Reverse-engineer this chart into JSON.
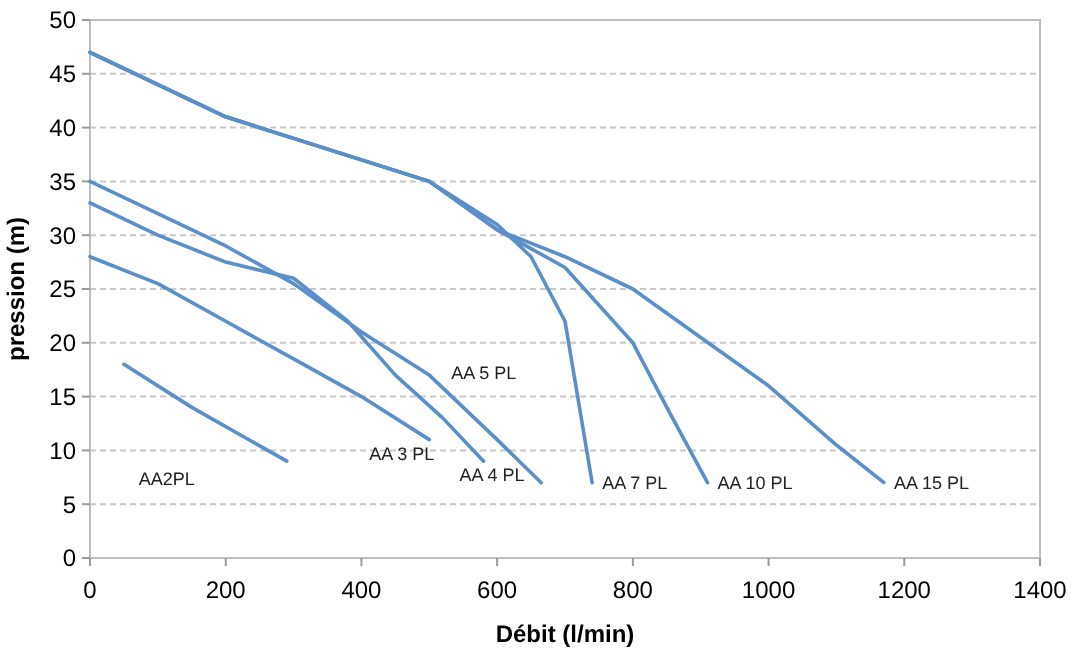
{
  "chart_data": {
    "type": "line",
    "xlabel": "Débit (l/min)",
    "ylabel": "pression (m)",
    "xlim": [
      0,
      1400
    ],
    "xticks": [
      0,
      200,
      400,
      600,
      800,
      1000,
      1200,
      1400
    ],
    "ylim": [
      0,
      50
    ],
    "yticks": [
      0,
      5,
      10,
      15,
      20,
      25,
      30,
      35,
      40,
      45,
      50
    ],
    "grid": "y",
    "marker": "none",
    "line_style": "solid",
    "series": [
      {
        "name": "AA2PL",
        "color": "#5b8fc9",
        "x": [
          50,
          150,
          290
        ],
        "values": [
          18,
          14,
          9
        ]
      },
      {
        "name": "AA 3 PL",
        "color": "#5b8fc9",
        "x": [
          0,
          100,
          200,
          300,
          400,
          500
        ],
        "values": [
          28,
          25.5,
          22,
          18.5,
          15,
          11
        ]
      },
      {
        "name": "AA 4 PL",
        "color": "#5b8fc9",
        "x": [
          0,
          100,
          200,
          300,
          380,
          450,
          520,
          580
        ],
        "values": [
          33,
          30,
          27.5,
          26,
          22,
          17,
          13,
          9
        ]
      },
      {
        "name": "AA 5 PL",
        "color": "#5b8fc9",
        "x": [
          0,
          100,
          200,
          300,
          400,
          500,
          600,
          665
        ],
        "values": [
          35,
          32,
          29,
          25.5,
          21,
          17,
          11,
          7
        ]
      },
      {
        "name": "AA 7 PL",
        "color": "#5b8fc9",
        "x": [
          0,
          100,
          200,
          300,
          400,
          500,
          550,
          600,
          650,
          700,
          740
        ],
        "values": [
          47,
          44,
          41,
          39,
          37,
          35,
          33,
          31,
          28,
          22,
          7
        ]
      },
      {
        "name": "AA 10 PL",
        "color": "#5b8fc9",
        "x": [
          0,
          100,
          200,
          300,
          400,
          500,
          600,
          700,
          800,
          850,
          910
        ],
        "values": [
          47,
          44,
          41,
          39,
          37,
          35,
          30.5,
          27,
          20,
          14,
          7
        ]
      },
      {
        "name": "AA 15 PL",
        "color": "#5b8fc9",
        "x": [
          0,
          100,
          200,
          300,
          400,
          500,
          600,
          700,
          800,
          900,
          1000,
          1100,
          1170
        ],
        "values": [
          47,
          44,
          41,
          39,
          37,
          35,
          30.5,
          28,
          25,
          20.5,
          16,
          10.5,
          7
        ]
      }
    ]
  }
}
